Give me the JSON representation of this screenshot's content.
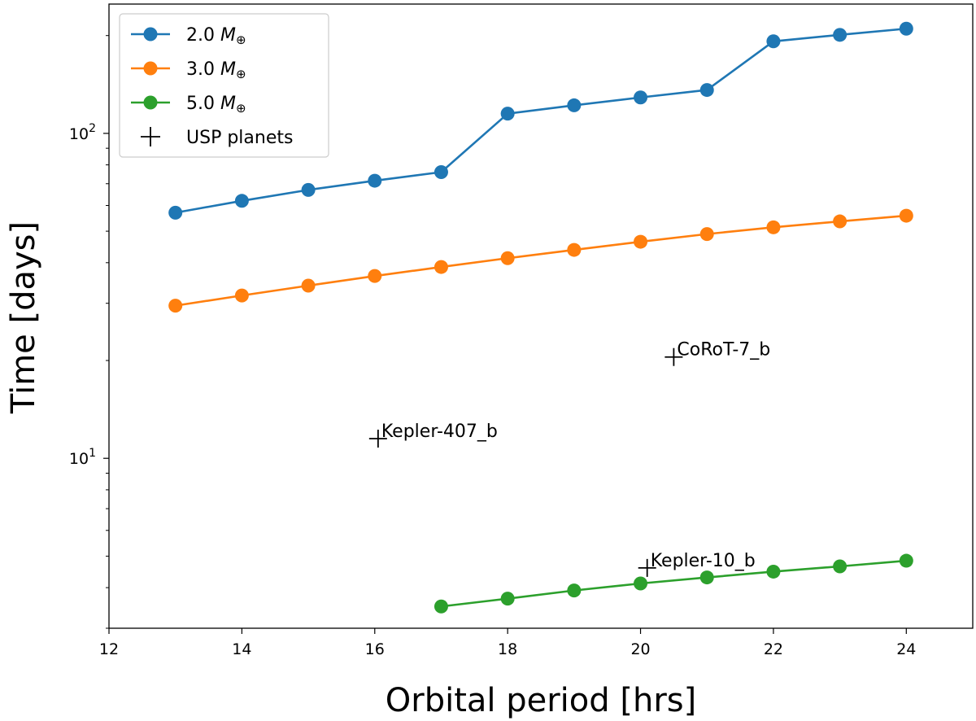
{
  "chart_data": {
    "type": "line",
    "xlabel": "Orbital period [hrs]",
    "ylabel": "Time [days]",
    "xlim": [
      12,
      25
    ],
    "ylim": [
      3,
      250
    ],
    "yscale": "log",
    "x_ticks": [
      12,
      14,
      16,
      18,
      20,
      22,
      24
    ],
    "y_major_ticks": [
      {
        "value": 10,
        "base": "10",
        "exp": "1"
      },
      {
        "value": 100,
        "base": "10",
        "exp": "2"
      }
    ],
    "series": [
      {
        "name": "2.0 M⊕",
        "label_base": "2.0 ",
        "label_m": "M",
        "label_sub": "⊕",
        "color": "#1f77b4",
        "x": [
          13,
          14,
          15,
          16,
          17,
          18,
          19,
          20,
          21,
          22,
          23,
          24
        ],
        "values": [
          57,
          62,
          67,
          71.5,
          76,
          115,
          122,
          129,
          136,
          192,
          201,
          210
        ]
      },
      {
        "name": "3.0 M⊕",
        "label_base": "3.0 ",
        "label_m": "M",
        "label_sub": "⊕",
        "color": "#ff7f0e",
        "x": [
          13,
          14,
          15,
          16,
          17,
          18,
          19,
          20,
          21,
          22,
          23,
          24
        ],
        "values": [
          29.5,
          31.7,
          34,
          36.4,
          38.8,
          41.3,
          43.8,
          46.4,
          49,
          51.4,
          53.6,
          55.8
        ]
      },
      {
        "name": "5.0 M⊕",
        "label_base": "5.0 ",
        "label_m": "M",
        "label_sub": "⊕",
        "color": "#2ca02c",
        "x": [
          17,
          18,
          19,
          20,
          21,
          22,
          23,
          24
        ],
        "values": [
          3.5,
          3.7,
          3.92,
          4.12,
          4.3,
          4.48,
          4.65,
          4.84
        ]
      }
    ],
    "usp_planets": {
      "legend_label": "USP planets",
      "points": [
        {
          "name": "CoRoT-7_b",
          "x": 20.5,
          "y": 20.5
        },
        {
          "name": "Kepler-407_b",
          "x": 16.05,
          "y": 11.5
        },
        {
          "name": "Kepler-10_b",
          "x": 20.1,
          "y": 4.6
        }
      ]
    }
  }
}
